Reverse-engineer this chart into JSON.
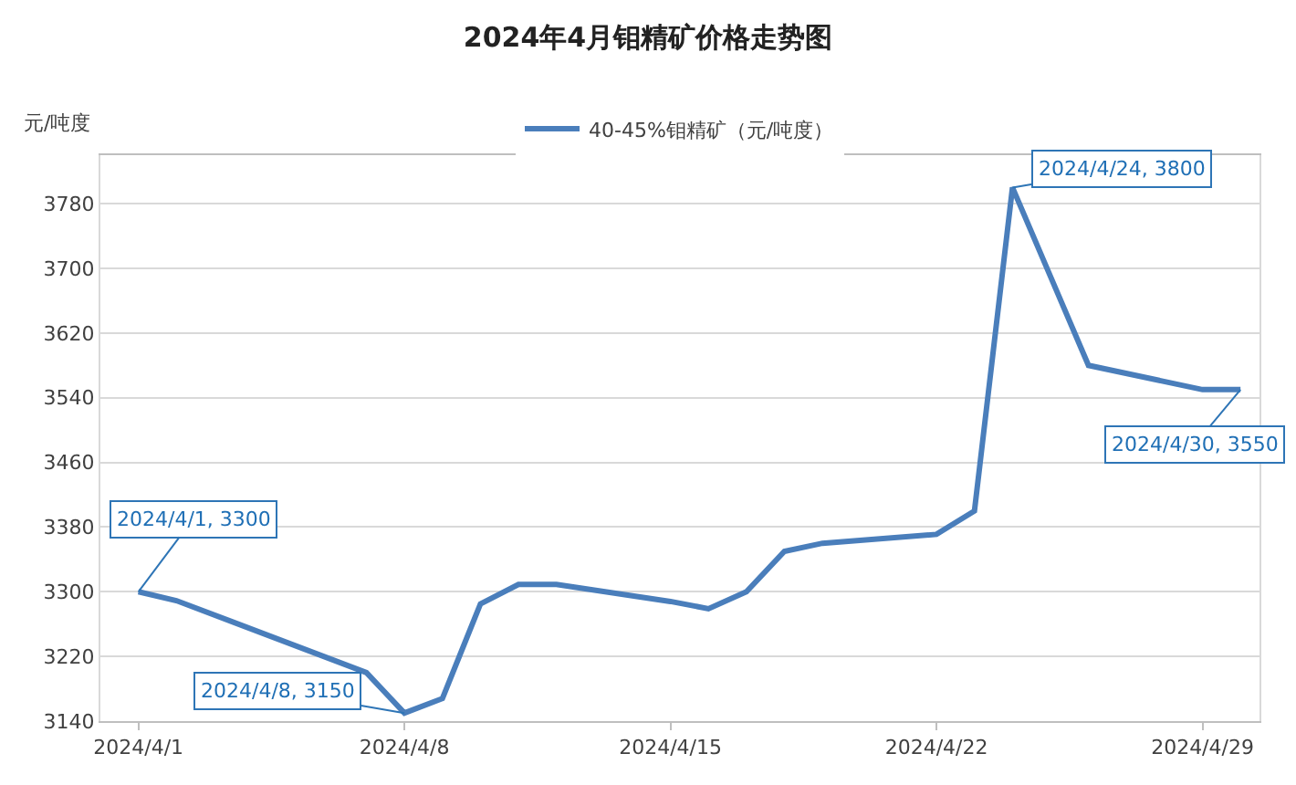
{
  "chart_data": {
    "type": "line",
    "title": "2024年4月钼精矿价格走势图",
    "ylabel": "元/吨度",
    "x": [
      "2024-04-01",
      "2024-04-02",
      "2024-04-07",
      "2024-04-08",
      "2024-04-09",
      "2024-04-10",
      "2024-04-11",
      "2024-04-12",
      "2024-04-15",
      "2024-04-16",
      "2024-04-17",
      "2024-04-18",
      "2024-04-19",
      "2024-04-22",
      "2024-04-23",
      "2024-04-24",
      "2024-04-25",
      "2024-04-26",
      "2024-04-29",
      "2024-04-30"
    ],
    "series": [
      {
        "name": "40-45%钼精矿（元/吨度）",
        "color": "#4a7ebb",
        "values": [
          3300,
          3289,
          3200,
          3150,
          3168,
          3285,
          3309,
          3309,
          3288,
          3279,
          3300,
          3350,
          3360,
          3371,
          3400,
          3800,
          3690,
          3580,
          3550,
          3550
        ]
      }
    ],
    "xlim": [
      "2024-03-31",
      "2024-04-30T12:00"
    ],
    "xticks": [
      {
        "value": "2024-04-01",
        "label": "2024/4/1"
      },
      {
        "value": "2024-04-08",
        "label": "2024/4/8"
      },
      {
        "value": "2024-04-15",
        "label": "2024/4/15"
      },
      {
        "value": "2024-04-22",
        "label": "2024/4/22"
      },
      {
        "value": "2024-04-29",
        "label": "2024/4/29"
      }
    ],
    "ylim": [
      3140,
      3840
    ],
    "yticks": [
      3140,
      3220,
      3300,
      3380,
      3460,
      3540,
      3620,
      3700,
      3780
    ],
    "grid": "y",
    "legend": "top",
    "marker": "none",
    "line_style": "solid",
    "annotations": [
      {
        "text": "2024/4/1, 3300",
        "x": "2024-04-01",
        "y": 3300
      },
      {
        "text": "2024/4/8, 3150",
        "x": "2024-04-08",
        "y": 3150
      },
      {
        "text": "2024/4/24, 3800",
        "x": "2024-04-24",
        "y": 3800
      },
      {
        "text": "2024/4/30, 3550",
        "x": "2024-04-30",
        "y": 3550
      }
    ]
  }
}
